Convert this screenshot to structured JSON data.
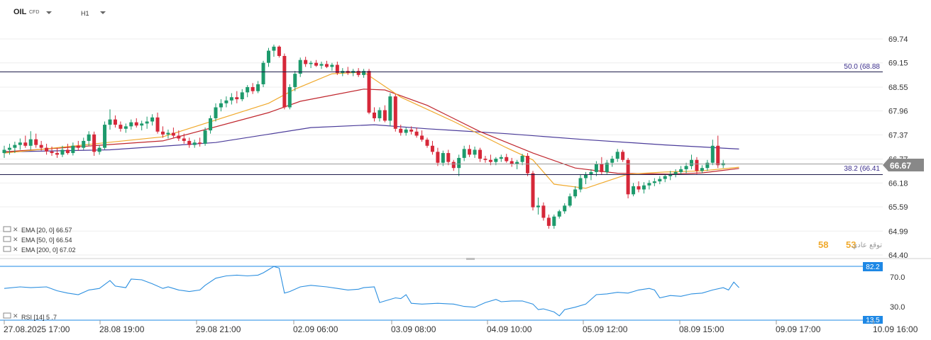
{
  "header": {
    "symbol": "OIL",
    "type": "CFD",
    "timeframe": "H1"
  },
  "colors": {
    "up": "#1d9a6c",
    "down": "#d62839",
    "ema20": "#f0a92c",
    "ema50": "#c0262d",
    "ema200": "#4b3c9a",
    "rsi": "#2b8fe0",
    "fib": "#1e1b4b",
    "price_tag": "#888888",
    "rsi_tag": "#1e88e5"
  },
  "fib_labels": {
    "upper": "50.0 (68.88",
    "lower": "38.2 (66.41"
  },
  "current_price": "66.67",
  "legend": {
    "ema20": "EMA [20, 0] 66.57",
    "ema50": "EMA [50, 0] 66.54",
    "ema200": "EMA [200, 0] 67.02",
    "rsi": "RSI [14] 5 .7"
  },
  "sentiment": {
    "buy": "58",
    "sell": "53",
    "label": "توقع عادي"
  },
  "rsi_tags": {
    "upper": "82.2",
    "lower": "13.5"
  },
  "chart_data": {
    "type": "candlestick",
    "y_ticks": [
      "69.74",
      "69.15",
      "68.55",
      "67.96",
      "67.37",
      "66.77",
      "66.18",
      "65.59",
      "64.99",
      "64.40"
    ],
    "x_ticks": [
      "27.08.2025 17:00",
      "28.08 19:00",
      "29.08 21:00",
      "02.09 06:00",
      "03.09 08:00",
      "04.09 10:00",
      "05.09 12:00",
      "08.09 15:00",
      "09.09 17:00",
      "10.09 16:00"
    ],
    "ylim": [
      64.4,
      70.2
    ],
    "fib_levels": [
      68.88,
      66.41
    ],
    "last_price": 66.67,
    "candles": [
      {
        "o": 66.92,
        "h": 67.1,
        "l": 66.8,
        "c": 67.0
      },
      {
        "o": 67.0,
        "h": 67.15,
        "l": 66.88,
        "c": 67.05
      },
      {
        "o": 67.05,
        "h": 67.2,
        "l": 66.92,
        "c": 67.12
      },
      {
        "o": 67.12,
        "h": 67.28,
        "l": 67.0,
        "c": 67.18
      },
      {
        "o": 67.18,
        "h": 67.35,
        "l": 67.05,
        "c": 67.1
      },
      {
        "o": 67.1,
        "h": 67.46,
        "l": 67.0,
        "c": 67.26
      },
      {
        "o": 67.26,
        "h": 67.4,
        "l": 67.05,
        "c": 67.12
      },
      {
        "o": 67.12,
        "h": 67.22,
        "l": 66.98,
        "c": 67.05
      },
      {
        "o": 67.05,
        "h": 67.15,
        "l": 66.88,
        "c": 66.96
      },
      {
        "o": 66.96,
        "h": 67.08,
        "l": 66.85,
        "c": 66.92
      },
      {
        "o": 66.92,
        "h": 67.05,
        "l": 66.8,
        "c": 66.88
      },
      {
        "o": 66.88,
        "h": 67.1,
        "l": 66.82,
        "c": 67.0
      },
      {
        "o": 67.0,
        "h": 67.15,
        "l": 66.88,
        "c": 66.92
      },
      {
        "o": 66.92,
        "h": 67.18,
        "l": 66.86,
        "c": 67.1
      },
      {
        "o": 67.1,
        "h": 67.22,
        "l": 66.98,
        "c": 67.05
      },
      {
        "o": 67.05,
        "h": 67.3,
        "l": 67.0,
        "c": 67.22
      },
      {
        "o": 67.22,
        "h": 67.46,
        "l": 67.1,
        "c": 67.38
      },
      {
        "o": 67.38,
        "h": 67.45,
        "l": 66.85,
        "c": 66.95
      },
      {
        "o": 66.95,
        "h": 67.12,
        "l": 66.88,
        "c": 67.05
      },
      {
        "o": 67.05,
        "h": 67.7,
        "l": 67.0,
        "c": 67.62
      },
      {
        "o": 67.62,
        "h": 68.0,
        "l": 67.5,
        "c": 67.75
      },
      {
        "o": 67.75,
        "h": 67.85,
        "l": 67.55,
        "c": 67.62
      },
      {
        "o": 67.62,
        "h": 67.7,
        "l": 67.45,
        "c": 67.52
      },
      {
        "o": 67.52,
        "h": 67.65,
        "l": 67.42,
        "c": 67.58
      },
      {
        "o": 67.58,
        "h": 67.75,
        "l": 67.5,
        "c": 67.68
      },
      {
        "o": 67.68,
        "h": 67.78,
        "l": 67.55,
        "c": 67.6
      },
      {
        "o": 67.6,
        "h": 67.72,
        "l": 67.48,
        "c": 67.65
      },
      {
        "o": 67.65,
        "h": 67.82,
        "l": 67.52,
        "c": 67.7
      },
      {
        "o": 67.7,
        "h": 67.88,
        "l": 67.6,
        "c": 67.8
      },
      {
        "o": 67.8,
        "h": 67.92,
        "l": 67.4,
        "c": 67.45
      },
      {
        "o": 67.45,
        "h": 67.58,
        "l": 67.3,
        "c": 67.38
      },
      {
        "o": 67.38,
        "h": 67.5,
        "l": 67.28,
        "c": 67.42
      },
      {
        "o": 67.42,
        "h": 67.55,
        "l": 67.3,
        "c": 67.35
      },
      {
        "o": 67.35,
        "h": 67.48,
        "l": 67.22,
        "c": 67.28
      },
      {
        "o": 67.28,
        "h": 67.4,
        "l": 67.15,
        "c": 67.22
      },
      {
        "o": 67.22,
        "h": 67.3,
        "l": 67.05,
        "c": 67.12
      },
      {
        "o": 67.12,
        "h": 67.25,
        "l": 67.05,
        "c": 67.18
      },
      {
        "o": 67.18,
        "h": 67.3,
        "l": 67.08,
        "c": 67.15
      },
      {
        "o": 67.15,
        "h": 67.55,
        "l": 67.1,
        "c": 67.48
      },
      {
        "o": 67.48,
        "h": 67.85,
        "l": 67.4,
        "c": 67.78
      },
      {
        "o": 67.78,
        "h": 68.15,
        "l": 67.7,
        "c": 68.05
      },
      {
        "o": 68.05,
        "h": 68.25,
        "l": 67.95,
        "c": 68.15
      },
      {
        "o": 68.15,
        "h": 68.32,
        "l": 68.05,
        "c": 68.22
      },
      {
        "o": 68.22,
        "h": 68.4,
        "l": 68.12,
        "c": 68.3
      },
      {
        "o": 68.3,
        "h": 68.45,
        "l": 68.15,
        "c": 68.25
      },
      {
        "o": 68.25,
        "h": 68.5,
        "l": 68.2,
        "c": 68.42
      },
      {
        "o": 68.42,
        "h": 68.6,
        "l": 68.3,
        "c": 68.55
      },
      {
        "o": 68.55,
        "h": 68.65,
        "l": 68.38,
        "c": 68.45
      },
      {
        "o": 68.45,
        "h": 68.7,
        "l": 68.4,
        "c": 68.62
      },
      {
        "o": 68.62,
        "h": 69.2,
        "l": 68.55,
        "c": 69.15
      },
      {
        "o": 69.15,
        "h": 69.52,
        "l": 69.05,
        "c": 69.45
      },
      {
        "o": 69.45,
        "h": 69.6,
        "l": 69.3,
        "c": 69.55
      },
      {
        "o": 69.55,
        "h": 69.58,
        "l": 69.28,
        "c": 69.32
      },
      {
        "o": 69.32,
        "h": 69.38,
        "l": 68.0,
        "c": 68.05
      },
      {
        "o": 68.05,
        "h": 68.62,
        "l": 68.0,
        "c": 68.55
      },
      {
        "o": 68.55,
        "h": 68.95,
        "l": 68.45,
        "c": 68.88
      },
      {
        "o": 68.88,
        "h": 69.28,
        "l": 68.8,
        "c": 69.22
      },
      {
        "o": 69.22,
        "h": 69.3,
        "l": 69.05,
        "c": 69.12
      },
      {
        "o": 69.12,
        "h": 69.2,
        "l": 69.02,
        "c": 69.15
      },
      {
        "o": 69.15,
        "h": 69.22,
        "l": 69.05,
        "c": 69.08
      },
      {
        "o": 69.08,
        "h": 69.18,
        "l": 69.0,
        "c": 69.12
      },
      {
        "o": 69.12,
        "h": 69.2,
        "l": 69.02,
        "c": 69.05
      },
      {
        "o": 69.05,
        "h": 69.15,
        "l": 68.95,
        "c": 69.1
      },
      {
        "o": 69.1,
        "h": 69.18,
        "l": 68.85,
        "c": 68.9
      },
      {
        "o": 68.9,
        "h": 69.02,
        "l": 68.82,
        "c": 68.95
      },
      {
        "o": 68.95,
        "h": 69.05,
        "l": 68.85,
        "c": 68.9
      },
      {
        "o": 68.9,
        "h": 69.0,
        "l": 68.82,
        "c": 68.95
      },
      {
        "o": 68.95,
        "h": 69.02,
        "l": 68.8,
        "c": 68.85
      },
      {
        "o": 68.85,
        "h": 69.0,
        "l": 68.78,
        "c": 68.95
      },
      {
        "o": 68.95,
        "h": 69.0,
        "l": 67.88,
        "c": 67.92
      },
      {
        "o": 67.92,
        "h": 68.05,
        "l": 67.7,
        "c": 67.78
      },
      {
        "o": 67.78,
        "h": 68.05,
        "l": 67.7,
        "c": 67.98
      },
      {
        "o": 67.98,
        "h": 68.1,
        "l": 67.68,
        "c": 67.72
      },
      {
        "o": 67.72,
        "h": 68.4,
        "l": 67.58,
        "c": 68.32
      },
      {
        "o": 68.32,
        "h": 68.38,
        "l": 67.45,
        "c": 67.52
      },
      {
        "o": 67.52,
        "h": 67.62,
        "l": 67.35,
        "c": 67.42
      },
      {
        "o": 67.42,
        "h": 67.55,
        "l": 67.35,
        "c": 67.5
      },
      {
        "o": 67.5,
        "h": 67.58,
        "l": 67.38,
        "c": 67.45
      },
      {
        "o": 67.45,
        "h": 67.55,
        "l": 67.3,
        "c": 67.35
      },
      {
        "o": 67.35,
        "h": 67.48,
        "l": 67.2,
        "c": 67.25
      },
      {
        "o": 67.25,
        "h": 67.3,
        "l": 67.05,
        "c": 67.1
      },
      {
        "o": 67.1,
        "h": 67.22,
        "l": 66.88,
        "c": 66.95
      },
      {
        "o": 66.95,
        "h": 67.05,
        "l": 66.6,
        "c": 66.68
      },
      {
        "o": 66.68,
        "h": 66.98,
        "l": 66.6,
        "c": 66.92
      },
      {
        "o": 66.92,
        "h": 67.0,
        "l": 66.62,
        "c": 66.7
      },
      {
        "o": 66.7,
        "h": 66.75,
        "l": 66.48,
        "c": 66.55
      },
      {
        "o": 66.55,
        "h": 66.88,
        "l": 66.35,
        "c": 66.8
      },
      {
        "o": 66.8,
        "h": 67.1,
        "l": 66.72,
        "c": 67.02
      },
      {
        "o": 67.02,
        "h": 67.12,
        "l": 66.82,
        "c": 66.88
      },
      {
        "o": 66.88,
        "h": 67.08,
        "l": 66.8,
        "c": 67.0
      },
      {
        "o": 67.0,
        "h": 67.05,
        "l": 66.7,
        "c": 66.78
      },
      {
        "o": 66.78,
        "h": 66.85,
        "l": 66.68,
        "c": 66.75
      },
      {
        "o": 66.75,
        "h": 66.88,
        "l": 66.62,
        "c": 66.7
      },
      {
        "o": 66.7,
        "h": 66.82,
        "l": 66.62,
        "c": 66.78
      },
      {
        "o": 66.78,
        "h": 66.88,
        "l": 66.7,
        "c": 66.82
      },
      {
        "o": 66.82,
        "h": 66.9,
        "l": 66.68,
        "c": 66.72
      },
      {
        "o": 66.72,
        "h": 66.8,
        "l": 66.58,
        "c": 66.65
      },
      {
        "o": 66.65,
        "h": 66.75,
        "l": 66.52,
        "c": 66.7
      },
      {
        "o": 66.7,
        "h": 66.9,
        "l": 66.62,
        "c": 66.85
      },
      {
        "o": 66.85,
        "h": 66.92,
        "l": 66.35,
        "c": 66.42
      },
      {
        "o": 66.42,
        "h": 66.48,
        "l": 65.5,
        "c": 65.58
      },
      {
        "o": 65.58,
        "h": 65.82,
        "l": 65.4,
        "c": 65.62
      },
      {
        "o": 65.62,
        "h": 65.7,
        "l": 65.25,
        "c": 65.32
      },
      {
        "o": 65.32,
        "h": 65.4,
        "l": 65.05,
        "c": 65.12
      },
      {
        "o": 65.12,
        "h": 65.4,
        "l": 65.05,
        "c": 65.35
      },
      {
        "o": 65.35,
        "h": 65.52,
        "l": 65.3,
        "c": 65.48
      },
      {
        "o": 65.48,
        "h": 65.68,
        "l": 65.42,
        "c": 65.62
      },
      {
        "o": 65.62,
        "h": 65.92,
        "l": 65.58,
        "c": 65.85
      },
      {
        "o": 65.85,
        "h": 66.1,
        "l": 65.8,
        "c": 66.02
      },
      {
        "o": 66.02,
        "h": 66.38,
        "l": 65.95,
        "c": 66.3
      },
      {
        "o": 66.3,
        "h": 66.45,
        "l": 66.15,
        "c": 66.38
      },
      {
        "o": 66.38,
        "h": 66.52,
        "l": 66.25,
        "c": 66.45
      },
      {
        "o": 66.45,
        "h": 66.72,
        "l": 66.35,
        "c": 66.65
      },
      {
        "o": 66.65,
        "h": 66.82,
        "l": 66.38,
        "c": 66.45
      },
      {
        "o": 66.45,
        "h": 66.75,
        "l": 66.4,
        "c": 66.68
      },
      {
        "o": 66.68,
        "h": 66.85,
        "l": 66.58,
        "c": 66.78
      },
      {
        "o": 66.78,
        "h": 67.02,
        "l": 66.7,
        "c": 66.95
      },
      {
        "o": 66.95,
        "h": 67.0,
        "l": 66.7,
        "c": 66.75
      },
      {
        "o": 66.75,
        "h": 66.8,
        "l": 65.8,
        "c": 65.9
      },
      {
        "o": 65.9,
        "h": 66.18,
        "l": 65.85,
        "c": 66.1
      },
      {
        "o": 66.1,
        "h": 66.22,
        "l": 65.95,
        "c": 66.02
      },
      {
        "o": 66.02,
        "h": 66.2,
        "l": 65.92,
        "c": 66.12
      },
      {
        "o": 66.12,
        "h": 66.25,
        "l": 66.02,
        "c": 66.18
      },
      {
        "o": 66.18,
        "h": 66.3,
        "l": 66.1,
        "c": 66.22
      },
      {
        "o": 66.22,
        "h": 66.35,
        "l": 66.15,
        "c": 66.28
      },
      {
        "o": 66.28,
        "h": 66.4,
        "l": 66.2,
        "c": 66.35
      },
      {
        "o": 66.35,
        "h": 66.48,
        "l": 66.25,
        "c": 66.4
      },
      {
        "o": 66.4,
        "h": 66.52,
        "l": 66.32,
        "c": 66.45
      },
      {
        "o": 66.45,
        "h": 66.6,
        "l": 66.38,
        "c": 66.52
      },
      {
        "o": 66.52,
        "h": 66.68,
        "l": 66.42,
        "c": 66.6
      },
      {
        "o": 66.6,
        "h": 66.88,
        "l": 66.52,
        "c": 66.75
      },
      {
        "o": 66.75,
        "h": 66.82,
        "l": 66.4,
        "c": 66.48
      },
      {
        "o": 66.48,
        "h": 66.62,
        "l": 66.42,
        "c": 66.55
      },
      {
        "o": 66.55,
        "h": 66.75,
        "l": 66.48,
        "c": 66.68
      },
      {
        "o": 66.68,
        "h": 67.25,
        "l": 66.62,
        "c": 67.1
      },
      {
        "o": 67.1,
        "h": 67.35,
        "l": 66.55,
        "c": 66.62
      },
      {
        "o": 66.62,
        "h": 66.75,
        "l": 66.55,
        "c": 66.67
      }
    ],
    "ema20": [
      [
        0,
        66.92
      ],
      [
        30,
        67.32
      ],
      [
        50,
        68.15
      ],
      [
        55,
        68.5
      ],
      [
        62,
        68.88
      ],
      [
        68,
        68.92
      ],
      [
        75,
        68.3
      ],
      [
        85,
        67.7
      ],
      [
        95,
        67.05
      ],
      [
        100,
        66.75
      ],
      [
        104,
        66.15
      ],
      [
        110,
        66.05
      ],
      [
        118,
        66.4
      ],
      [
        125,
        66.45
      ],
      [
        132,
        66.48
      ],
      [
        139,
        66.57
      ]
    ],
    "ema50": [
      [
        0,
        66.95
      ],
      [
        30,
        67.22
      ],
      [
        50,
        67.92
      ],
      [
        56,
        68.2
      ],
      [
        68,
        68.5
      ],
      [
        72,
        68.48
      ],
      [
        80,
        68.1
      ],
      [
        90,
        67.45
      ],
      [
        100,
        66.92
      ],
      [
        108,
        66.55
      ],
      [
        116,
        66.42
      ],
      [
        126,
        66.4
      ],
      [
        132,
        66.43
      ],
      [
        139,
        66.54
      ]
    ],
    "ema200": [
      [
        0,
        66.95
      ],
      [
        20,
        67.0
      ],
      [
        40,
        67.18
      ],
      [
        58,
        67.55
      ],
      [
        70,
        67.62
      ],
      [
        80,
        67.52
      ],
      [
        95,
        67.4
      ],
      [
        110,
        67.25
      ],
      [
        125,
        67.12
      ],
      [
        139,
        67.02
      ]
    ],
    "rsi_ylim": [
      13.5,
      82.2
    ],
    "rsi_ticks": [
      "70.0",
      "30.0"
    ],
    "rsi": [
      [
        0,
        54
      ],
      [
        3,
        56
      ],
      [
        5,
        55
      ],
      [
        8,
        56
      ],
      [
        10,
        51
      ],
      [
        12,
        48
      ],
      [
        14,
        46
      ],
      [
        16,
        52
      ],
      [
        18,
        54
      ],
      [
        20,
        64
      ],
      [
        21,
        57
      ],
      [
        23,
        55
      ],
      [
        24,
        66
      ],
      [
        26,
        65
      ],
      [
        28,
        60
      ],
      [
        30,
        54
      ],
      [
        31,
        56
      ],
      [
        33,
        52
      ],
      [
        35,
        50
      ],
      [
        37,
        52
      ],
      [
        38,
        58
      ],
      [
        40,
        67
      ],
      [
        42,
        70
      ],
      [
        44,
        71
      ],
      [
        46,
        70
      ],
      [
        48,
        71
      ],
      [
        49,
        74
      ],
      [
        50,
        78
      ],
      [
        51,
        82
      ],
      [
        52,
        80
      ],
      [
        53,
        48
      ],
      [
        54,
        50
      ],
      [
        56,
        56
      ],
      [
        58,
        58
      ],
      [
        61,
        56
      ],
      [
        63,
        54
      ],
      [
        65,
        52
      ],
      [
        67,
        53
      ],
      [
        68,
        55
      ],
      [
        70,
        56
      ],
      [
        71,
        36
      ],
      [
        72,
        38
      ],
      [
        74,
        42
      ],
      [
        75,
        41
      ],
      [
        76,
        46
      ],
      [
        77,
        35
      ],
      [
        79,
        34
      ],
      [
        82,
        35
      ],
      [
        85,
        34
      ],
      [
        87,
        31
      ],
      [
        89,
        30
      ],
      [
        91,
        36
      ],
      [
        93,
        40
      ],
      [
        94,
        37
      ],
      [
        96,
        38
      ],
      [
        98,
        38
      ],
      [
        100,
        34
      ],
      [
        101,
        27
      ],
      [
        102,
        28
      ],
      [
        104,
        24
      ],
      [
        105,
        19
      ],
      [
        106,
        27
      ],
      [
        108,
        30
      ],
      [
        110,
        34
      ],
      [
        112,
        46
      ],
      [
        114,
        47
      ],
      [
        116,
        49
      ],
      [
        118,
        48
      ],
      [
        120,
        52
      ],
      [
        122,
        54
      ],
      [
        123,
        52
      ],
      [
        124,
        42
      ],
      [
        126,
        45
      ],
      [
        128,
        44
      ],
      [
        130,
        47
      ],
      [
        132,
        48
      ],
      [
        134,
        52
      ],
      [
        136,
        55
      ],
      [
        137,
        52
      ],
      [
        138,
        62
      ],
      [
        139,
        55
      ]
    ]
  }
}
